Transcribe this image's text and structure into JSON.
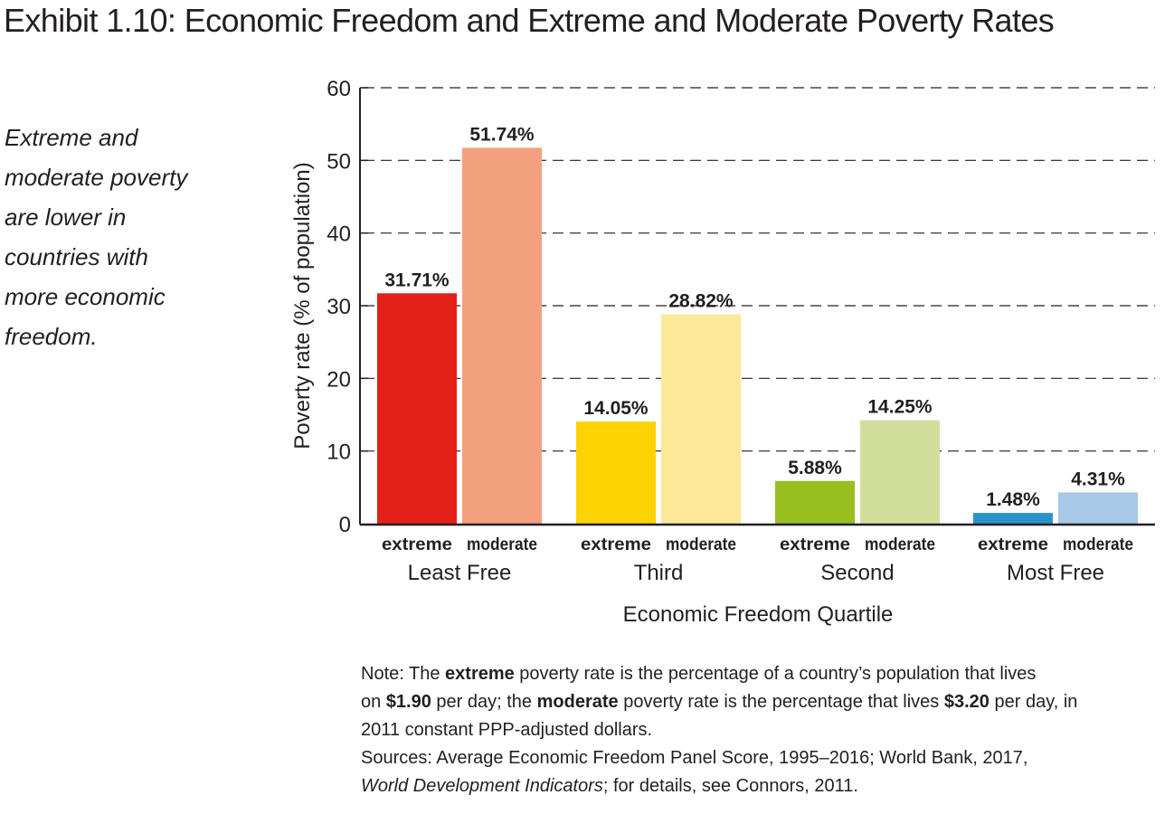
{
  "title": "Exhibit 1.10: Economic Freedom and Extreme and Moderate Poverty Rates",
  "sidebar_text": [
    "Extreme and",
    "moderate poverty",
    "are lower in",
    "countries with",
    "more economic",
    "freedom."
  ],
  "note": {
    "line1": {
      "pre": "Note: The ",
      "bold1": "extreme",
      "post": " poverty rate is the percentage of a country’s population that lives"
    },
    "line2": {
      "pre": "on ",
      "bold1": "$1.90",
      "mid1": " per day; the ",
      "bold2": "moderate",
      "mid2": " poverty rate is the percentage that lives ",
      "bold3": "$3.20",
      "post": " per day, in"
    },
    "line3": "2011 constant PPP-adjusted dollars.",
    "sources1": "Sources: Average Economic Freedom Panel Score, 1995–2016; World Bank, 2017,",
    "sources2_italic": "World Development Indicators",
    "sources2_rest": "; for details, see Connors, 2011."
  },
  "chart_data": {
    "type": "bar",
    "title": "Exhibit 1.10: Economic Freedom and Extreme and Moderate Poverty Rates",
    "xlabel": "Economic Freedom Quartile",
    "ylabel": "Poverty rate (% of population)",
    "ylim": [
      0,
      60
    ],
    "yticks": [
      0,
      10,
      20,
      30,
      40,
      50,
      60
    ],
    "grid": "dashed-horizontal",
    "categories": [
      "Least Free",
      "Third",
      "Second",
      "Most Free"
    ],
    "series": [
      {
        "name": "extreme",
        "values": [
          31.71,
          14.05,
          5.88,
          1.48
        ],
        "labels": [
          "31.71%",
          "14.05%",
          "5.88%",
          "1.48%"
        ],
        "colors": [
          "#e32119",
          "#fcd200",
          "#97bf20",
          "#2b93cb"
        ]
      },
      {
        "name": "moderate",
        "values": [
          51.74,
          28.82,
          14.25,
          4.31
        ],
        "labels": [
          "51.74%",
          "28.82%",
          "14.25%",
          "4.31%"
        ],
        "colors": [
          "#f3a07f",
          "#fce898",
          "#d2df9c",
          "#a7c8e6"
        ]
      }
    ],
    "legend": "none (series named under each bar)"
  }
}
